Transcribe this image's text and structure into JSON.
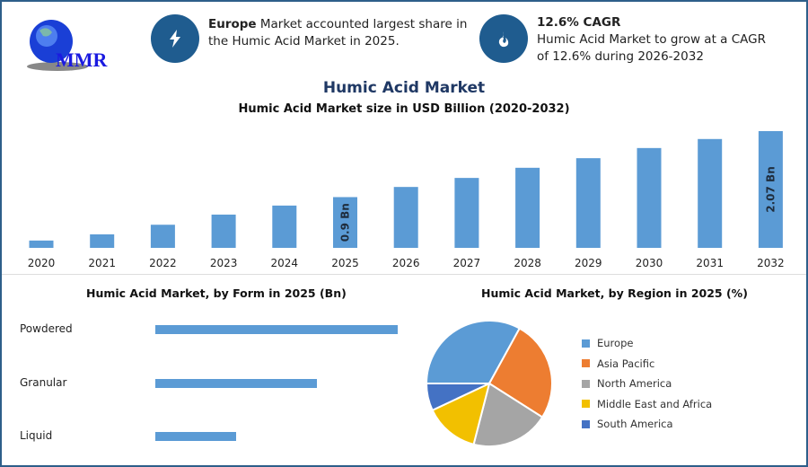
{
  "logo": {
    "text": "MMR"
  },
  "info_cards": [
    {
      "icon": "lightning-icon",
      "bold": "Europe",
      "text": " Market accounted largest share in the Humic Acid Market in 2025."
    },
    {
      "icon": "flame-drop-icon",
      "bold": "12.6% CAGR",
      "text": "Humic Acid Market to grow at a CAGR of 12.6% during 2026-2032"
    }
  ],
  "main_title": "Humic Acid Market",
  "chart_data": [
    {
      "type": "bar",
      "title": "Humic Acid Market size in USD Billion (2020-2032)",
      "categories": [
        "2020",
        "2021",
        "2022",
        "2023",
        "2024",
        "2025",
        "2026",
        "2027",
        "2028",
        "2029",
        "2030",
        "2031",
        "2032"
      ],
      "values": [
        0.13,
        0.24,
        0.41,
        0.59,
        0.75,
        0.9,
        1.08,
        1.24,
        1.42,
        1.59,
        1.77,
        1.93,
        2.07
      ],
      "data_labels": {
        "2025": "0.9 Bn",
        "2032": "2.07 Bn"
      },
      "ylim": [
        0,
        2.2
      ],
      "color": "#5b9bd5",
      "grid": false
    },
    {
      "type": "bar",
      "orientation": "horizontal",
      "title": "Humic Acid Market, by Form in 2025 (Bn)",
      "categories": [
        "Powdered",
        "Granular",
        "Liquid"
      ],
      "values": [
        0.45,
        0.3,
        0.15
      ],
      "color": "#5b9bd5"
    },
    {
      "type": "pie",
      "title": "Humic Acid Market, by Region in 2025 (%)",
      "categories": [
        "Europe",
        "Asia Pacific",
        "North America",
        "Middle East and Africa",
        "South America"
      ],
      "values": [
        33,
        26,
        20,
        14,
        7
      ],
      "colors": [
        "#5b9bd5",
        "#ed7d31",
        "#a5a5a5",
        "#f2c000",
        "#4472c4"
      ],
      "legend": "right"
    }
  ]
}
